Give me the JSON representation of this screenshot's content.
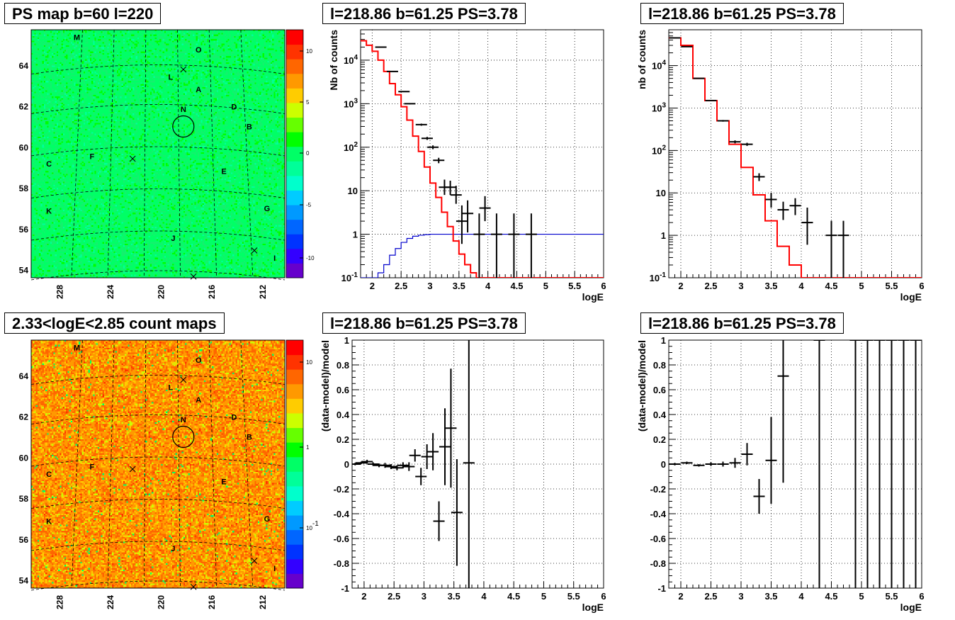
{
  "titles": {
    "map1": "PS map b=60 l=220",
    "map2": "2.33<logE<2.85 count maps",
    "spec1": "l=218.86 b=61.25 PS=3.78",
    "spec2": "l=218.86 b=61.25 PS=3.78",
    "res1": "l=218.86 b=61.25 PS=3.78",
    "res2": "l=218.86 b=61.25 PS=3.78"
  },
  "colors": {
    "model": "#ff0000",
    "exposure": "#0000cc",
    "data": "#000000"
  },
  "chart_data": [
    {
      "type": "heatmap",
      "id": "ps-map",
      "title": "PS map b=60 l=220",
      "x_ticks": [
        "228",
        "224",
        "220",
        "216",
        "212"
      ],
      "y_ticks": [
        "54",
        "56",
        "58",
        "60",
        "62",
        "64"
      ],
      "colorbar_ticks": [
        "-10",
        "-5",
        "0",
        "5",
        "10"
      ],
      "sources": [
        "M",
        "O",
        "L",
        "A",
        "N",
        "D",
        "B",
        "F",
        "C",
        "E",
        "K",
        "G",
        "J",
        "I"
      ],
      "marker": {
        "label": "circle",
        "l": 218.86,
        "b": 61.25
      }
    },
    {
      "type": "heatmap",
      "id": "count-map",
      "title": "2.33<logE<2.85 count maps",
      "x_ticks": [
        "228",
        "224",
        "220",
        "216",
        "212"
      ],
      "y_ticks": [
        "54",
        "56",
        "58",
        "60",
        "62",
        "64"
      ],
      "colorbar_ticks": [
        "10^-1",
        "1",
        "10"
      ],
      "sources": [
        "M",
        "O",
        "L",
        "A",
        "N",
        "D",
        "B",
        "F",
        "C",
        "E",
        "K",
        "G",
        "J",
        "I"
      ]
    },
    {
      "type": "line",
      "id": "spectrum-1",
      "title": "l=218.86 b=61.25 PS=3.78",
      "xlabel": "logE",
      "ylabel": "Nb of counts",
      "xlim": [
        1.8,
        6
      ],
      "ylim": [
        0.1,
        50000
      ],
      "yscale": "log",
      "x_ticks": [
        "2",
        "2.5",
        "3",
        "3.5",
        "4",
        "4.5",
        "5",
        "5.5",
        "6"
      ],
      "y_ticks": [
        "10^-1",
        "1",
        "10",
        "10^2",
        "10^3",
        "10^4"
      ],
      "grid": true,
      "model": {
        "edges": [
          1.8,
          1.9,
          2.0,
          2.1,
          2.2,
          2.3,
          2.4,
          2.5,
          2.6,
          2.7,
          2.8,
          2.9,
          3.0,
          3.1,
          3.2,
          3.3,
          3.4,
          3.5,
          3.6,
          3.7,
          3.8,
          3.9,
          4.0,
          4.1,
          4.2,
          6.0
        ],
        "values": [
          28000,
          22000,
          16000,
          10000,
          5500,
          2900,
          1600,
          850,
          420,
          180,
          80,
          35,
          15,
          7,
          3.2,
          1.5,
          0.7,
          0.35,
          0.2,
          0.13,
          0.1,
          0.1,
          0.1,
          0.1,
          0.1
        ]
      },
      "exposure": {
        "edges": [
          1.8,
          2.0,
          2.1,
          2.2,
          2.3,
          2.4,
          2.5,
          2.6,
          2.7,
          2.8,
          2.9,
          3.0,
          3.1,
          6.0
        ],
        "values": [
          0.1,
          0.1,
          0.13,
          0.2,
          0.33,
          0.47,
          0.65,
          0.8,
          0.9,
          0.95,
          0.98,
          1.0,
          1.0
        ]
      },
      "data": [
        {
          "x": 2.15,
          "y": 20000
        },
        {
          "x": 2.35,
          "y": 5500
        },
        {
          "x": 2.55,
          "y": 1900
        },
        {
          "x": 2.65,
          "y": 1000
        },
        {
          "x": 2.85,
          "y": 330
        },
        {
          "x": 2.95,
          "y": 160
        },
        {
          "x": 3.05,
          "y": 100
        },
        {
          "x": 3.15,
          "y": 50
        },
        {
          "x": 3.25,
          "y": 12,
          "lo": 8,
          "hi": 18
        },
        {
          "x": 3.35,
          "y": 12,
          "lo": 8,
          "hi": 17
        },
        {
          "x": 3.45,
          "y": 8,
          "lo": 5,
          "hi": 13
        },
        {
          "x": 3.55,
          "y": 2,
          "lo": 0.6,
          "hi": 4.6
        },
        {
          "x": 3.65,
          "y": 3,
          "lo": 1.1,
          "hi": 6
        },
        {
          "x": 3.85,
          "y": 1,
          "lo": 0.1,
          "hi": 3
        },
        {
          "x": 3.95,
          "y": 4,
          "lo": 2,
          "hi": 7.5
        },
        {
          "x": 4.15,
          "y": 1,
          "lo": 0.1,
          "hi": 3
        },
        {
          "x": 4.45,
          "y": 1,
          "lo": 0.1,
          "hi": 3
        },
        {
          "x": 4.75,
          "y": 1,
          "lo": 0.1,
          "hi": 3
        }
      ]
    },
    {
      "type": "line",
      "id": "spectrum-2",
      "title": "l=218.86 b=61.25 PS=3.78",
      "xlabel": "logE",
      "ylabel": "nb of counts",
      "xlim": [
        1.8,
        6
      ],
      "ylim": [
        0.1,
        70000
      ],
      "yscale": "log",
      "x_ticks": [
        "2",
        "2.5",
        "3",
        "3.5",
        "4",
        "4.5",
        "5",
        "5.5",
        "6"
      ],
      "y_ticks": [
        "10^-1",
        "1",
        "10",
        "10^2",
        "10^3",
        "10^4"
      ],
      "grid": true,
      "model": {
        "edges": [
          1.8,
          2.0,
          2.2,
          2.4,
          2.6,
          2.8,
          3.0,
          3.2,
          3.4,
          3.6,
          3.8,
          4.0,
          4.2,
          6.0
        ],
        "values": [
          45000,
          30000,
          5000,
          1500,
          500,
          140,
          40,
          9,
          2.2,
          0.55,
          0.2,
          0.1,
          0.1
        ]
      },
      "data": [
        {
          "x": 1.9,
          "y": 45000
        },
        {
          "x": 2.1,
          "y": 28000
        },
        {
          "x": 2.3,
          "y": 5000
        },
        {
          "x": 2.5,
          "y": 1500
        },
        {
          "x": 2.7,
          "y": 500
        },
        {
          "x": 2.9,
          "y": 160
        },
        {
          "x": 3.1,
          "y": 140
        },
        {
          "x": 3.3,
          "y": 24,
          "lo": 19,
          "hi": 29
        },
        {
          "x": 3.5,
          "y": 7,
          "lo": 4.5,
          "hi": 10
        },
        {
          "x": 3.7,
          "y": 4,
          "lo": 2.3,
          "hi": 6.2
        },
        {
          "x": 3.9,
          "y": 5,
          "lo": 3,
          "hi": 7.5
        },
        {
          "x": 4.1,
          "y": 2,
          "lo": 0.6,
          "hi": 4.5
        },
        {
          "x": 4.5,
          "y": 1,
          "lo": 0.1,
          "hi": 2.2
        },
        {
          "x": 4.7,
          "y": 1,
          "lo": 0.1,
          "hi": 2.2
        }
      ]
    },
    {
      "type": "scatter",
      "id": "residual-1",
      "title": "l=218.86 b=61.25 PS=3.78",
      "xlabel": "logE",
      "ylabel": "(data-model)/model",
      "xlim": [
        1.8,
        6
      ],
      "ylim": [
        -1,
        1
      ],
      "x_ticks": [
        "2",
        "2.5",
        "3",
        "3.5",
        "4",
        "4.5",
        "5",
        "5.5",
        "6"
      ],
      "y_ticks": [
        "-1",
        "-0.8",
        "-0.6",
        "-0.4",
        "-0.2",
        "0",
        "0.2",
        "0.4",
        "0.6",
        "0.8",
        "1"
      ],
      "grid": true,
      "data": [
        {
          "x": 1.85,
          "y": 0.0,
          "e": 0.01
        },
        {
          "x": 1.95,
          "y": 0.01,
          "e": 0.01
        },
        {
          "x": 2.05,
          "y": 0.02,
          "e": 0.015
        },
        {
          "x": 2.15,
          "y": 0.0,
          "e": 0.015
        },
        {
          "x": 2.25,
          "y": -0.01,
          "e": 0.015
        },
        {
          "x": 2.35,
          "y": -0.01,
          "e": 0.02
        },
        {
          "x": 2.45,
          "y": -0.02,
          "e": 0.02
        },
        {
          "x": 2.55,
          "y": -0.03,
          "e": 0.02
        },
        {
          "x": 2.65,
          "y": -0.01,
          "e": 0.025
        },
        {
          "x": 2.75,
          "y": -0.02,
          "e": 0.035
        },
        {
          "x": 2.85,
          "y": 0.07,
          "e": 0.05
        },
        {
          "x": 2.95,
          "y": -0.1,
          "e": 0.07
        },
        {
          "x": 3.05,
          "y": 0.06,
          "e": 0.1
        },
        {
          "x": 3.15,
          "y": 0.1,
          "e": 0.15
        },
        {
          "x": 3.25,
          "y": -0.46,
          "e": 0.16
        },
        {
          "x": 3.35,
          "y": 0.14,
          "e": 0.31
        },
        {
          "x": 3.45,
          "y": 0.29,
          "e": 0.48
        },
        {
          "x": 3.55,
          "y": -0.39,
          "e": 0.43
        },
        {
          "x": 3.75,
          "y": 0.01,
          "e": 1.5
        }
      ]
    },
    {
      "type": "scatter",
      "id": "residual-2",
      "title": "l=218.86 b=61.25 PS=3.78",
      "xlabel": "logE",
      "ylabel": "(data-model)/model",
      "xlim": [
        1.8,
        6
      ],
      "ylim": [
        -1,
        1
      ],
      "x_ticks": [
        "2",
        "2.5",
        "3",
        "3.5",
        "4",
        "4.5",
        "5",
        "5.5",
        "6"
      ],
      "y_ticks": [
        "-1",
        "-0.8",
        "-0.6",
        "-0.4",
        "-0.2",
        "0",
        "0.2",
        "0.4",
        "0.6",
        "0.8",
        "1"
      ],
      "grid": true,
      "data": [
        {
          "x": 1.9,
          "y": 0.0,
          "e": 0.01
        },
        {
          "x": 2.1,
          "y": 0.01,
          "e": 0.01
        },
        {
          "x": 2.3,
          "y": -0.01,
          "e": 0.01
        },
        {
          "x": 2.5,
          "y": 0.0,
          "e": 0.015
        },
        {
          "x": 2.7,
          "y": 0.0,
          "e": 0.02
        },
        {
          "x": 2.9,
          "y": 0.01,
          "e": 0.04
        },
        {
          "x": 3.1,
          "y": 0.08,
          "e": 0.09
        },
        {
          "x": 3.3,
          "y": -0.26,
          "e": 0.14
        },
        {
          "x": 3.5,
          "y": 0.03,
          "e": 0.35
        },
        {
          "x": 3.7,
          "y": 0.71,
          "e": 0.86
        },
        {
          "x": 4.3,
          "y": 1.0,
          "e": 2.5
        },
        {
          "x": 4.9,
          "y": 1.0,
          "e": 2.5
        },
        {
          "x": 5.1,
          "y": 1.0,
          "e": 2.5
        },
        {
          "x": 5.3,
          "y": 1.0,
          "e": 2.5
        },
        {
          "x": 5.5,
          "y": 1.0,
          "e": 2.5
        },
        {
          "x": 5.7,
          "y": 1.0,
          "e": 2.5
        },
        {
          "x": 5.9,
          "y": 1.0,
          "e": 2.5
        }
      ]
    }
  ]
}
